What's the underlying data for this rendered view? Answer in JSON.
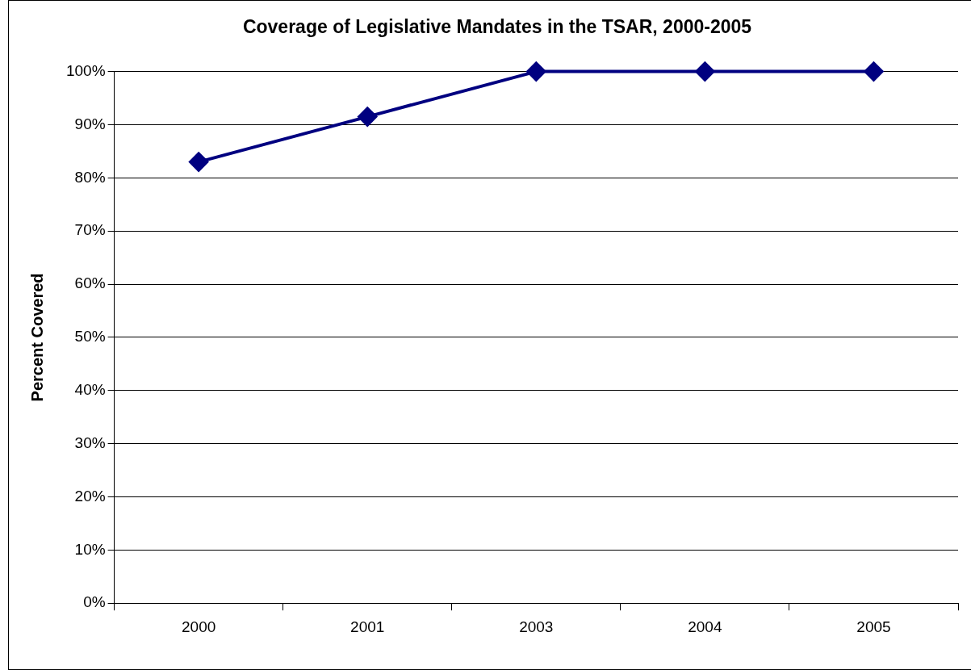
{
  "chart_data": {
    "type": "line",
    "title": "Coverage of Legislative Mandates in the TSAR, 2000-2005",
    "ylabel": "Percent Covered",
    "categories": [
      "2000",
      "2001",
      "2003",
      "2004",
      "2005"
    ],
    "series": [
      {
        "color": "#000080",
        "values": [
          83,
          91.5,
          100,
          100,
          100
        ]
      }
    ],
    "ylim": [
      0,
      100
    ],
    "yticks": [
      {
        "value": 0,
        "label": "0%"
      },
      {
        "value": 10,
        "label": "10%"
      },
      {
        "value": 20,
        "label": "20%"
      },
      {
        "value": 30,
        "label": "30%"
      },
      {
        "value": 40,
        "label": "40%"
      },
      {
        "value": 50,
        "label": "50%"
      },
      {
        "value": 60,
        "label": "60%"
      },
      {
        "value": 70,
        "label": "70%"
      },
      {
        "value": 80,
        "label": "80%"
      },
      {
        "value": 90,
        "label": "90%"
      },
      {
        "value": 100,
        "label": "100%"
      }
    ],
    "grid": "y",
    "legend": false,
    "marker": "diamond",
    "line_style": "solid"
  }
}
